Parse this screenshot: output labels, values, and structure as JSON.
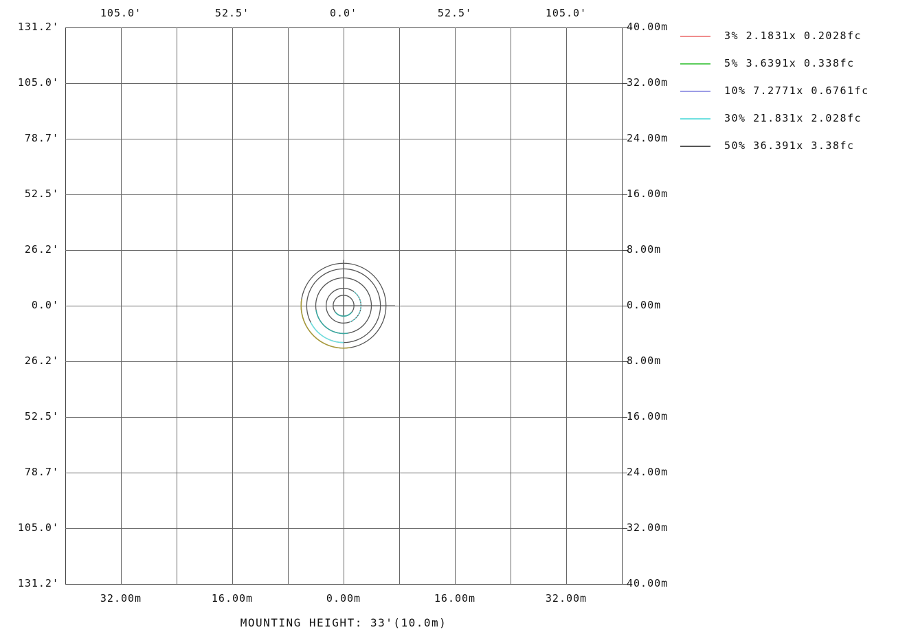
{
  "chart_data": {
    "type": "contour",
    "caption": "MOUNTING HEIGHT: 33'(10.0m)",
    "top_axis_labels": [
      "105.0'",
      "52.5'",
      "0.0'",
      "52.5'",
      "105.0'"
    ],
    "bottom_axis_labels": [
      "32.00m",
      "16.00m",
      "0.00m",
      "16.00m",
      "32.00m"
    ],
    "left_axis_labels": [
      "131.2'",
      "105.0'",
      "78.7'",
      "52.5'",
      "26.2'",
      "0.0'",
      "26.2'",
      "52.5'",
      "78.7'",
      "105.0'",
      "131.2'"
    ],
    "right_axis_labels": [
      "40.00m",
      "32.00m",
      "24.00m",
      "16.00m",
      "8.00m",
      "0.00m",
      "8.00m",
      "16.00m",
      "24.00m",
      "32.00m",
      "40.00m"
    ],
    "xlim_m": [
      -40,
      40
    ],
    "ylim_m": [
      -40,
      40
    ],
    "grid_step_m": 8,
    "grid": true,
    "legend_position": "right",
    "series": [
      {
        "name": "3% 2.1831x 0.2028fc",
        "color": "#f08c8c",
        "radius_m": 6.2
      },
      {
        "name": "5% 3.6391x 0.338fc",
        "color": "#5ccd5c",
        "radius_m": 4.4
      },
      {
        "name": "10% 7.2771x 0.6761fc",
        "color": "#9c9ce6",
        "radius_m": 3.9
      },
      {
        "name": "30% 21.831x 2.028fc",
        "color": "#6fe0e0",
        "radius_m": 2.1
      },
      {
        "name": "50% 36.391x 3.38fc",
        "color": "#555555",
        "radius_m": 1.6
      }
    ],
    "rings_m": [
      1.5,
      2.5,
      4.0,
      5.3,
      6.1
    ]
  }
}
